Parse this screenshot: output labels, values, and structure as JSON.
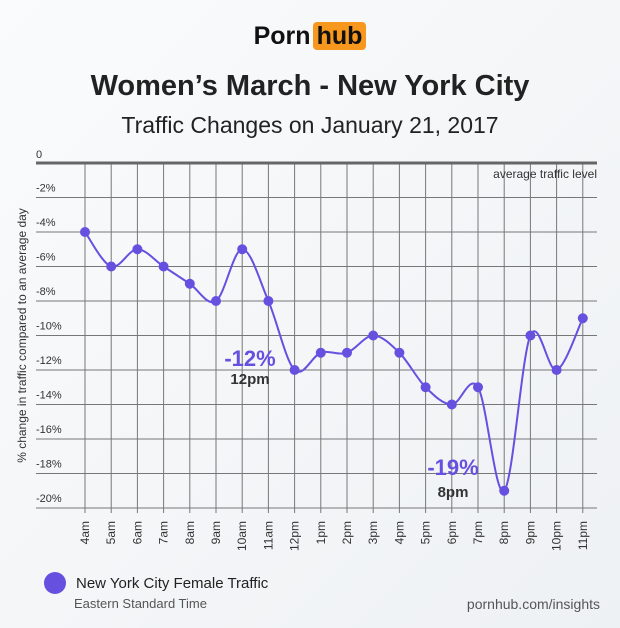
{
  "logo": {
    "left": "Porn",
    "right": "hub"
  },
  "chart_data": {
    "type": "line",
    "title": "Women’s March - New York City",
    "subtitle": "Traffic Changes on January 21, 2017",
    "ylabel": "% change in traffic compared to an average day",
    "xlabel": "",
    "ylim": [
      -20,
      0
    ],
    "yticks": [
      "0",
      "-2%",
      "-4%",
      "-6%",
      "-8%",
      "-10%",
      "-12%",
      "-14%",
      "-16%",
      "-18%",
      "-20%"
    ],
    "categories": [
      "4am",
      "5am",
      "6am",
      "7am",
      "8am",
      "9am",
      "10am",
      "11am",
      "12pm",
      "1pm",
      "2pm",
      "3pm",
      "4pm",
      "5pm",
      "6pm",
      "7pm",
      "8pm",
      "9pm",
      "10pm",
      "11pm"
    ],
    "series": [
      {
        "name": "New York City Female Traffic",
        "color": "#6650e0",
        "values": [
          -4,
          -6,
          -5,
          -6,
          -7,
          -8,
          -5,
          -8,
          -12,
          -11,
          -11,
          -10,
          -11,
          -13,
          -14,
          -13,
          -19,
          -10,
          -12,
          -9
        ]
      }
    ],
    "reference_label": "average traffic level",
    "annotations": [
      {
        "value": "-12%",
        "time": "12pm"
      },
      {
        "value": "-19%",
        "time": "8pm"
      }
    ],
    "grid": true
  },
  "legend": {
    "label": "New York City Female Traffic",
    "timezone": "Eastern Standard Time"
  },
  "footer": "pornhub.com/insights"
}
